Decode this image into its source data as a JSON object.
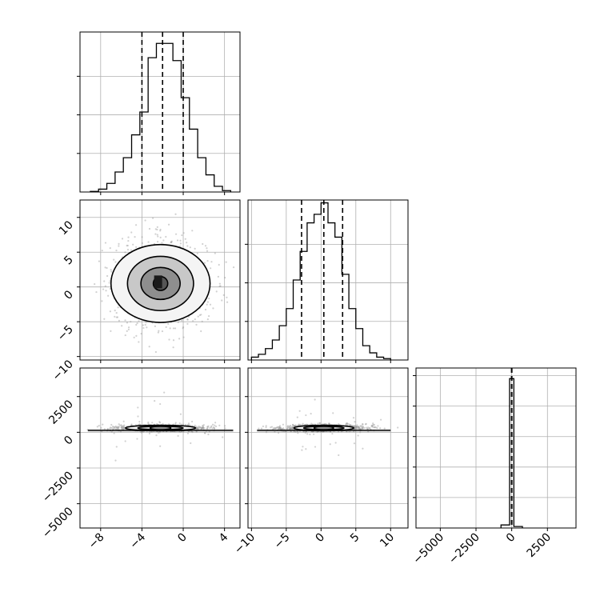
{
  "chart_data": {
    "type": "corner",
    "grid": true,
    "colors": {
      "line": "#000000",
      "grid": "#b0b0b0",
      "scatter": "#9a9a9a",
      "fill_dark": "#303030",
      "fill_light": "#f2f2f2"
    },
    "variables": [
      {
        "range": [
          -10,
          5.5
        ],
        "ticks": [
          -8,
          -4,
          0,
          4
        ],
        "tick_labels": [
          "−8",
          "−4",
          "0",
          "4"
        ],
        "quantiles": [
          -4,
          -2,
          0
        ]
      },
      {
        "range": [
          -10.5,
          12.5
        ],
        "ticks": [
          -10,
          -5,
          0,
          5,
          10
        ],
        "tick_labels": [
          "−10",
          "−5",
          "0",
          "5",
          "10"
        ],
        "quantiles": [
          -2.8,
          0.4,
          3.1
        ]
      },
      {
        "range": [
          -6700,
          4500
        ],
        "ticks": [
          -5000,
          -2500,
          0,
          2500
        ],
        "tick_labels": [
          "−5000",
          "−2500",
          "0",
          "2500"
        ],
        "quantiles": [
          -10,
          0,
          10
        ]
      }
    ],
    "histograms": [
      {
        "variable": 0,
        "ylim": [
          0,
          0.56
        ],
        "bins": [
          -9,
          -8.2,
          -7.4,
          -6.6,
          -5.8,
          -5,
          -4.2,
          -3.4,
          -2.6,
          -1.8,
          -1,
          -0.2,
          0.6,
          1.4,
          2.2,
          3,
          3.8,
          4.6
        ],
        "counts": [
          0.002,
          0.01,
          0.03,
          0.07,
          0.12,
          0.2,
          0.28,
          0.47,
          0.52,
          0.52,
          0.46,
          0.33,
          0.22,
          0.12,
          0.06,
          0.02,
          0.005
        ]
      },
      {
        "variable": 1,
        "ylim": [
          0,
          0.56
        ],
        "bins": [
          -10,
          -9,
          -8,
          -7,
          -6,
          -5,
          -4,
          -3,
          -2,
          -1,
          0,
          1,
          2,
          3,
          4,
          5,
          6,
          7,
          8,
          9,
          10
        ],
        "counts": [
          0.01,
          0.02,
          0.04,
          0.07,
          0.12,
          0.18,
          0.28,
          0.38,
          0.48,
          0.51,
          0.55,
          0.48,
          0.43,
          0.3,
          0.18,
          0.11,
          0.05,
          0.025,
          0.01,
          0.005
        ]
      },
      {
        "variable": 2,
        "ylim": [
          0,
          1.05
        ],
        "bins": [
          -750,
          -150,
          150,
          750
        ],
        "counts": [
          0.02,
          0.98,
          0.01
        ]
      }
    ],
    "scatter_panels": [
      {
        "x_variable": 0,
        "y_variable": 1,
        "center": [
          -2.2,
          0.5
        ],
        "spread": [
          2.2,
          3.0
        ],
        "n_points": 1500,
        "contour_levels": [
          [
            4.8,
            5.6
          ],
          [
            3.2,
            3.9
          ],
          [
            1.9,
            2.3
          ],
          [
            0.7,
            1.0
          ]
        ]
      },
      {
        "x_variable": 0,
        "y_variable": 2,
        "center": [
          -2.2,
          300
        ],
        "spread": [
          2.2,
          120
        ],
        "n_points": 1100,
        "contour_levels": [
          [
            3.4,
            190
          ],
          [
            2.2,
            110
          ],
          [
            1.0,
            55
          ]
        ]
      },
      {
        "x_variable": 1,
        "y_variable": 2,
        "center": [
          0.4,
          300
        ],
        "spread": [
          3.0,
          120
        ],
        "n_points": 1100,
        "contour_levels": [
          [
            4.3,
            190
          ],
          [
            2.9,
            110
          ],
          [
            1.4,
            55
          ]
        ]
      }
    ]
  }
}
